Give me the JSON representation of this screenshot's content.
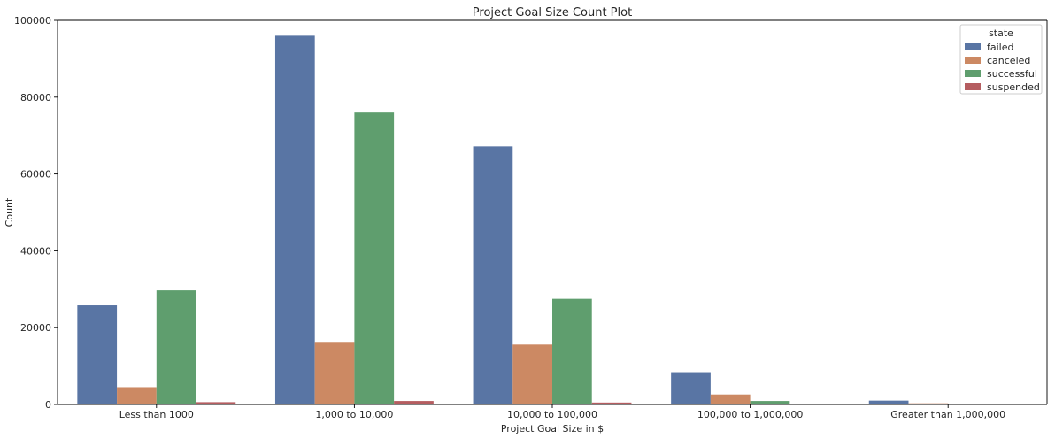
{
  "chart_data": {
    "type": "bar",
    "title": "Project Goal Size Count Plot",
    "xlabel": "Project Goal Size in $",
    "ylabel": "Count",
    "ylim": [
      0,
      100000
    ],
    "yticks": [
      0,
      20000,
      40000,
      60000,
      80000,
      100000
    ],
    "yticklabels": [
      "0",
      "20000",
      "40000",
      "60000",
      "80000",
      "100000"
    ],
    "categories": [
      "Less than 1000",
      "1,000 to 10,000",
      "10,000 to 100,000",
      "100,000 to 1,000,000",
      "Greater than 1,000,000"
    ],
    "legend_title": "state",
    "legend_position": "top-right",
    "grid": false,
    "series": [
      {
        "name": "failed",
        "color": "#5975a4",
        "values": [
          25800,
          96000,
          67200,
          8400,
          1000
        ]
      },
      {
        "name": "canceled",
        "color": "#cc8963",
        "values": [
          4500,
          16300,
          15600,
          2600,
          300
        ]
      },
      {
        "name": "successful",
        "color": "#5f9e6e",
        "values": [
          29700,
          76000,
          27500,
          900,
          100
        ]
      },
      {
        "name": "suspended",
        "color": "#b55d60",
        "values": [
          600,
          900,
          500,
          200,
          50
        ]
      }
    ]
  }
}
